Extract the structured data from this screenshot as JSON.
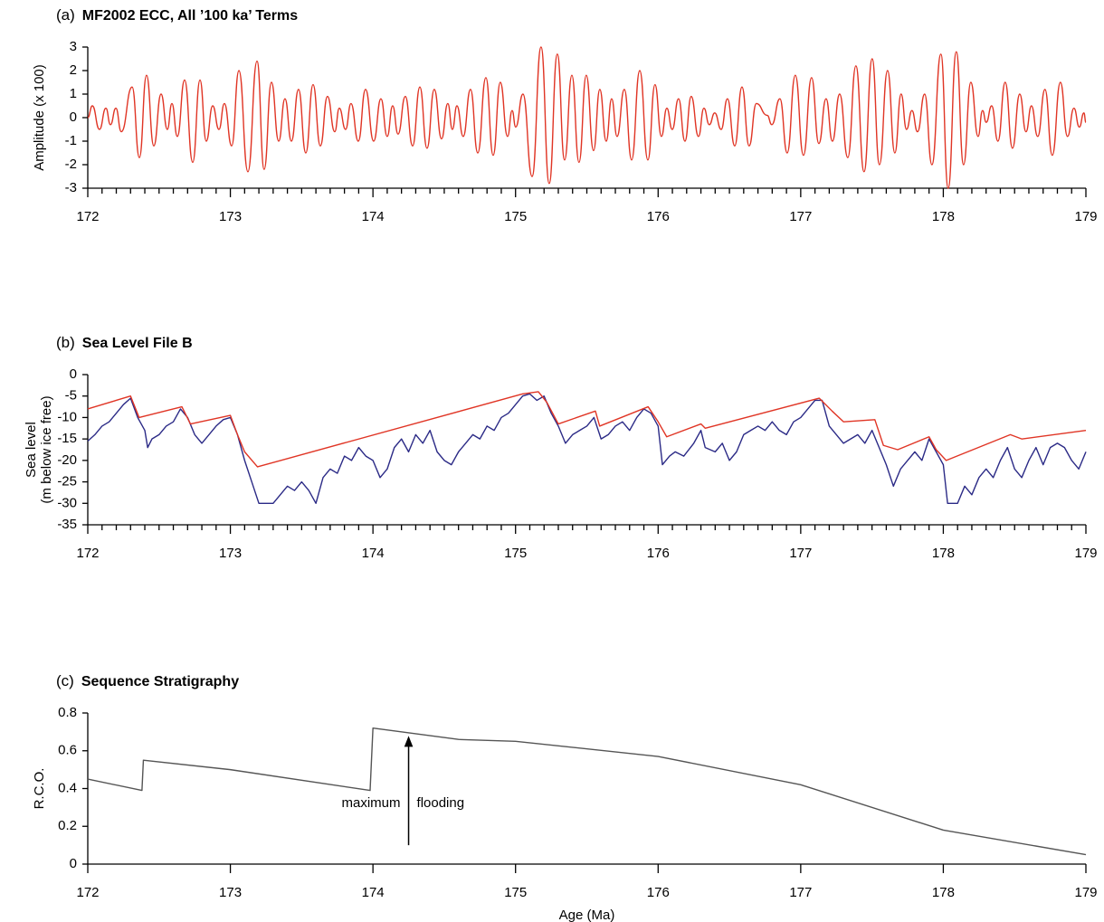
{
  "chart_data": [
    {
      "type": "line",
      "panel_label": "(a)",
      "title": "MF2002 ECC, All ’100 ka’ Terms",
      "ylabel": [
        "Amplitude (x 100)"
      ],
      "xlim": [
        172,
        179
      ],
      "xticks": [
        172,
        173,
        174,
        175,
        176,
        177,
        178,
        179
      ],
      "minor_ticks_per_major": 10,
      "ylim": [
        -3,
        3
      ],
      "yticks": [
        3,
        2,
        1,
        0,
        -1,
        -2,
        -3
      ],
      "smooth": true,
      "series": [
        {
          "color": "#e03525",
          "x": [
            172.0,
            172.032,
            172.082,
            172.127,
            172.159,
            172.197,
            172.235,
            172.311,
            172.362,
            172.412,
            172.463,
            172.514,
            172.558,
            172.59,
            172.628,
            172.679,
            172.736,
            172.787,
            172.831,
            172.876,
            172.92,
            172.958,
            173.009,
            173.06,
            173.123,
            173.187,
            173.237,
            173.288,
            173.339,
            173.383,
            173.428,
            173.478,
            173.529,
            173.58,
            173.631,
            173.681,
            173.732,
            173.764,
            173.808,
            173.846,
            173.897,
            173.948,
            174.005,
            174.056,
            174.1,
            174.138,
            174.176,
            174.227,
            174.278,
            174.329,
            174.379,
            174.43,
            174.481,
            174.525,
            174.557,
            174.589,
            174.633,
            174.684,
            174.735,
            174.792,
            174.843,
            174.893,
            174.944,
            174.976,
            175.001,
            175.052,
            175.116,
            175.179,
            175.236,
            175.293,
            175.344,
            175.395,
            175.445,
            175.496,
            175.547,
            175.591,
            175.636,
            175.674,
            175.712,
            175.763,
            175.814,
            175.871,
            175.928,
            175.978,
            176.023,
            176.061,
            176.099,
            176.143,
            176.188,
            176.232,
            176.283,
            176.321,
            176.359,
            176.397,
            176.442,
            176.486,
            176.537,
            176.588,
            176.638,
            176.689,
            176.765,
            176.797,
            176.854,
            176.905,
            176.962,
            177.019,
            177.076,
            177.127,
            177.178,
            177.222,
            177.273,
            177.33,
            177.387,
            177.444,
            177.501,
            177.552,
            177.609,
            177.66,
            177.704,
            177.742,
            177.78,
            177.819,
            177.869,
            177.92,
            177.983,
            178.034,
            178.091,
            178.142,
            178.193,
            178.244,
            178.275,
            178.301,
            178.339,
            178.383,
            178.434,
            178.485,
            178.536,
            178.58,
            178.618,
            178.662,
            178.713,
            178.764,
            178.821,
            178.871,
            178.916,
            178.954,
            178.986,
            179.0
          ],
          "values": [
            0,
            0.5,
            -0.5,
            0.4,
            -0.3,
            0.4,
            -0.6,
            1.3,
            -1.7,
            1.8,
            -1.2,
            1.0,
            -0.5,
            0.6,
            -0.8,
            1.6,
            -1.9,
            1.6,
            -1.0,
            0.5,
            -0.5,
            0.6,
            -1.2,
            2.0,
            -2.3,
            2.4,
            -2.2,
            1.5,
            -1.0,
            0.8,
            -1.0,
            1.2,
            -1.5,
            1.4,
            -1.2,
            0.9,
            -0.6,
            0.4,
            -0.5,
            0.6,
            -1.0,
            1.2,
            -1.0,
            0.8,
            -0.8,
            0.5,
            -0.7,
            0.9,
            -1.2,
            1.3,
            -1.3,
            1.2,
            -0.9,
            0.6,
            -0.5,
            0.5,
            -0.8,
            1.2,
            -1.5,
            1.7,
            -1.6,
            1.5,
            -0.8,
            0.3,
            -0.4,
            1.0,
            -2.5,
            3.0,
            -2.8,
            2.7,
            -1.8,
            1.8,
            -1.9,
            1.8,
            -1.4,
            1.2,
            -1.0,
            0.8,
            -0.8,
            1.2,
            -1.8,
            2.0,
            -1.8,
            1.4,
            -0.8,
            0.4,
            -0.5,
            0.8,
            -1.0,
            0.9,
            -0.8,
            0.4,
            -0.3,
            0.2,
            -0.5,
            0.8,
            -1.2,
            1.3,
            -1.2,
            0.6,
            0.1,
            -0.3,
            0.8,
            -1.5,
            1.8,
            -1.6,
            1.7,
            -1.1,
            0.8,
            -1.0,
            1.0,
            -1.7,
            2.2,
            -2.3,
            2.5,
            -2.0,
            2.0,
            -1.5,
            1.0,
            -0.5,
            0.3,
            -0.6,
            1.0,
            -2.0,
            2.7,
            -3.0,
            2.8,
            -2.0,
            1.5,
            -0.8,
            0.3,
            -0.2,
            0.5,
            -1.0,
            1.5,
            -1.3,
            1.0,
            -0.6,
            0.5,
            -0.8,
            1.2,
            -1.6,
            1.5,
            -0.8,
            0.4,
            -0.4,
            0.2,
            -0.2
          ]
        }
      ]
    },
    {
      "type": "line",
      "panel_label": "(b)",
      "title": "Sea Level File B",
      "ylabel": [
        "Sea level",
        "(m below ice free)"
      ],
      "xlim": [
        172,
        179
      ],
      "xticks": [
        172,
        173,
        174,
        175,
        176,
        177,
        178,
        179
      ],
      "minor_ticks_per_major": 10,
      "ylim": [
        -35,
        0
      ],
      "yticks": [
        0,
        -5,
        -10,
        -15,
        -20,
        -25,
        -30,
        -35
      ],
      "smooth": false,
      "series": [
        {
          "color": "#2b2a86",
          "x": [
            172.0,
            172.05,
            172.1,
            172.15,
            172.2,
            172.25,
            172.3,
            172.35,
            172.4,
            172.42,
            172.45,
            172.5,
            172.55,
            172.6,
            172.65,
            172.7,
            172.75,
            172.8,
            172.85,
            172.9,
            172.95,
            173.0,
            173.05,
            173.1,
            173.15,
            173.2,
            173.25,
            173.3,
            173.35,
            173.4,
            173.45,
            173.5,
            173.55,
            173.6,
            173.65,
            173.7,
            173.75,
            173.8,
            173.85,
            173.9,
            173.95,
            174.0,
            174.05,
            174.1,
            174.15,
            174.2,
            174.25,
            174.3,
            174.35,
            174.4,
            174.45,
            174.5,
            174.55,
            174.6,
            174.65,
            174.7,
            174.75,
            174.8,
            174.85,
            174.9,
            174.95,
            175.0,
            175.05,
            175.1,
            175.15,
            175.2,
            175.25,
            175.3,
            175.35,
            175.4,
            175.45,
            175.5,
            175.55,
            175.6,
            175.65,
            175.7,
            175.75,
            175.8,
            175.85,
            175.9,
            175.95,
            176.0,
            176.03,
            176.08,
            176.12,
            176.18,
            176.25,
            176.3,
            176.33,
            176.4,
            176.45,
            176.5,
            176.55,
            176.6,
            176.65,
            176.7,
            176.75,
            176.8,
            176.85,
            176.9,
            176.95,
            177.0,
            177.05,
            177.1,
            177.15,
            177.2,
            177.25,
            177.3,
            177.35,
            177.4,
            177.45,
            177.5,
            177.55,
            177.6,
            177.65,
            177.7,
            177.75,
            177.8,
            177.85,
            177.9,
            177.95,
            178.0,
            178.03,
            178.1,
            178.15,
            178.2,
            178.25,
            178.3,
            178.35,
            178.4,
            178.45,
            178.5,
            178.55,
            178.6,
            178.65,
            178.7,
            178.75,
            178.8,
            178.85,
            178.9,
            178.95,
            179.0
          ],
          "values": [
            -15.5,
            -14,
            -12,
            -11,
            -9,
            -7,
            -5.5,
            -10,
            -13,
            -17,
            -15,
            -14,
            -12,
            -11,
            -8,
            -10,
            -14,
            -16,
            -14,
            -12,
            -10.5,
            -10,
            -14,
            -20,
            -25,
            -30,
            -30,
            -30,
            -28,
            -26,
            -27,
            -25,
            -27,
            -30,
            -24,
            -22,
            -23,
            -19,
            -20,
            -17,
            -19,
            -20,
            -24,
            -22,
            -17,
            -15,
            -18,
            -14,
            -16,
            -13,
            -18,
            -20,
            -21,
            -18,
            -16,
            -14,
            -15,
            -12,
            -13,
            -10,
            -9,
            -7,
            -5,
            -4.5,
            -6,
            -5,
            -9,
            -12,
            -16,
            -14,
            -13,
            -12,
            -10,
            -15,
            -14,
            -12,
            -11,
            -13,
            -10,
            -8,
            -9,
            -12,
            -21,
            -19,
            -18,
            -19,
            -16,
            -13,
            -17,
            -18,
            -16,
            -20,
            -18,
            -14,
            -13,
            -12,
            -13,
            -11,
            -13,
            -14,
            -11,
            -10,
            -8,
            -6,
            -6,
            -12,
            -14,
            -16,
            -15,
            -14,
            -16,
            -13,
            -17,
            -21,
            -26,
            -22,
            -20,
            -18,
            -20,
            -15,
            -18,
            -21,
            -30,
            -30,
            -26,
            -28,
            -24,
            -22,
            -24,
            -20,
            -17,
            -22,
            -24,
            -20,
            -17,
            -21,
            -17,
            -16,
            -17,
            -20,
            -22,
            -18
          ]
        },
        {
          "color": "#e03525",
          "x": [
            172.0,
            172.3,
            172.36,
            172.66,
            172.72,
            173.0,
            173.05,
            173.1,
            173.19,
            175.05,
            175.16,
            175.22,
            175.3,
            175.56,
            175.59,
            175.93,
            176.0,
            176.06,
            176.3,
            176.33,
            177.13,
            177.22,
            177.3,
            177.52,
            177.58,
            177.68,
            177.9,
            177.95,
            178.02,
            178.47,
            178.55,
            179.0
          ],
          "values": [
            -8,
            -5,
            -10,
            -7.5,
            -11.5,
            -9.5,
            -14,
            -18,
            -21.5,
            -4.5,
            -4,
            -6.5,
            -11.5,
            -8.5,
            -12,
            -7.5,
            -11,
            -14.5,
            -11.5,
            -12.5,
            -5.5,
            -8.5,
            -11,
            -10.5,
            -16.5,
            -17.5,
            -14.5,
            -17.5,
            -20,
            -14,
            -15,
            -13
          ]
        }
      ]
    },
    {
      "type": "line",
      "panel_label": "(c)",
      "title": "Sequence Stratigraphy",
      "ylabel": [
        "R.C.O."
      ],
      "xlabel": "Age  (Ma)",
      "xlim": [
        172,
        179
      ],
      "xticks": [
        172,
        173,
        174,
        175,
        176,
        177,
        178,
        179
      ],
      "ylim": [
        0,
        0.8
      ],
      "yticks": [
        0,
        0.2,
        0.4,
        0.6,
        0.8
      ],
      "smooth": false,
      "annotations": [
        "maximum",
        "flooding"
      ],
      "series": [
        {
          "color": "#555555",
          "x": [
            172,
            172.38,
            172.39,
            173,
            173.98,
            174.0,
            174.6,
            175,
            176,
            177,
            178,
            179
          ],
          "values": [
            0.45,
            0.39,
            0.55,
            0.5,
            0.39,
            0.72,
            0.66,
            0.65,
            0.57,
            0.42,
            0.18,
            0.05
          ]
        }
      ]
    }
  ]
}
